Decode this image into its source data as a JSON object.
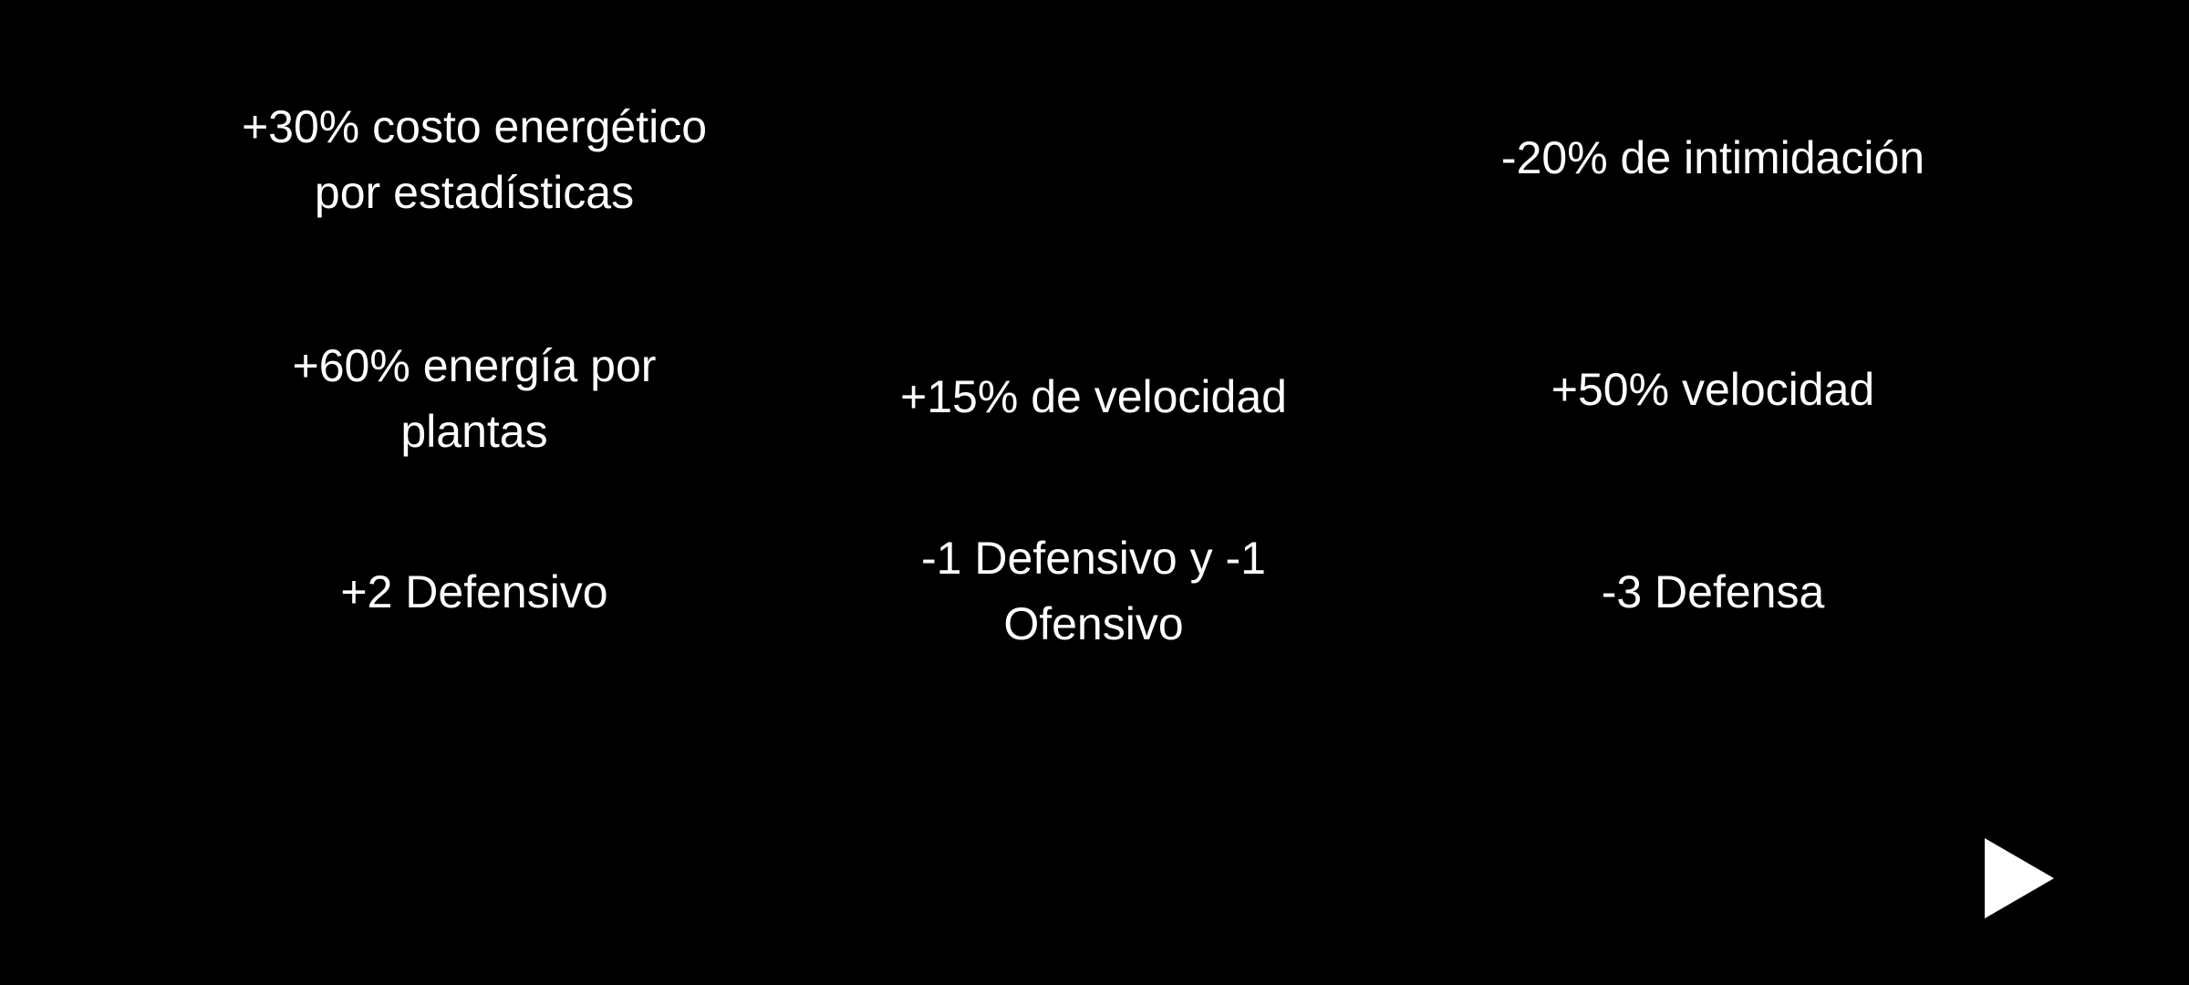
{
  "grid": {
    "row1": {
      "left": [
        "+30% costo energético",
        "por estadísticas"
      ],
      "right": "-20% de intimidación"
    },
    "row2": {
      "left": [
        "+60% energía por",
        "plantas"
      ],
      "center": "+15% de velocidad",
      "right": "+50% velocidad"
    },
    "row3": {
      "left": "+2 Defensivo",
      "center": [
        "-1 Defensivo y -1",
        "Ofensivo"
      ],
      "right": "-3 Defensa"
    }
  },
  "controls": {
    "next_icon": "play-triangle-icon"
  },
  "colors": {
    "background": "#000000",
    "text": "#ffffff"
  }
}
